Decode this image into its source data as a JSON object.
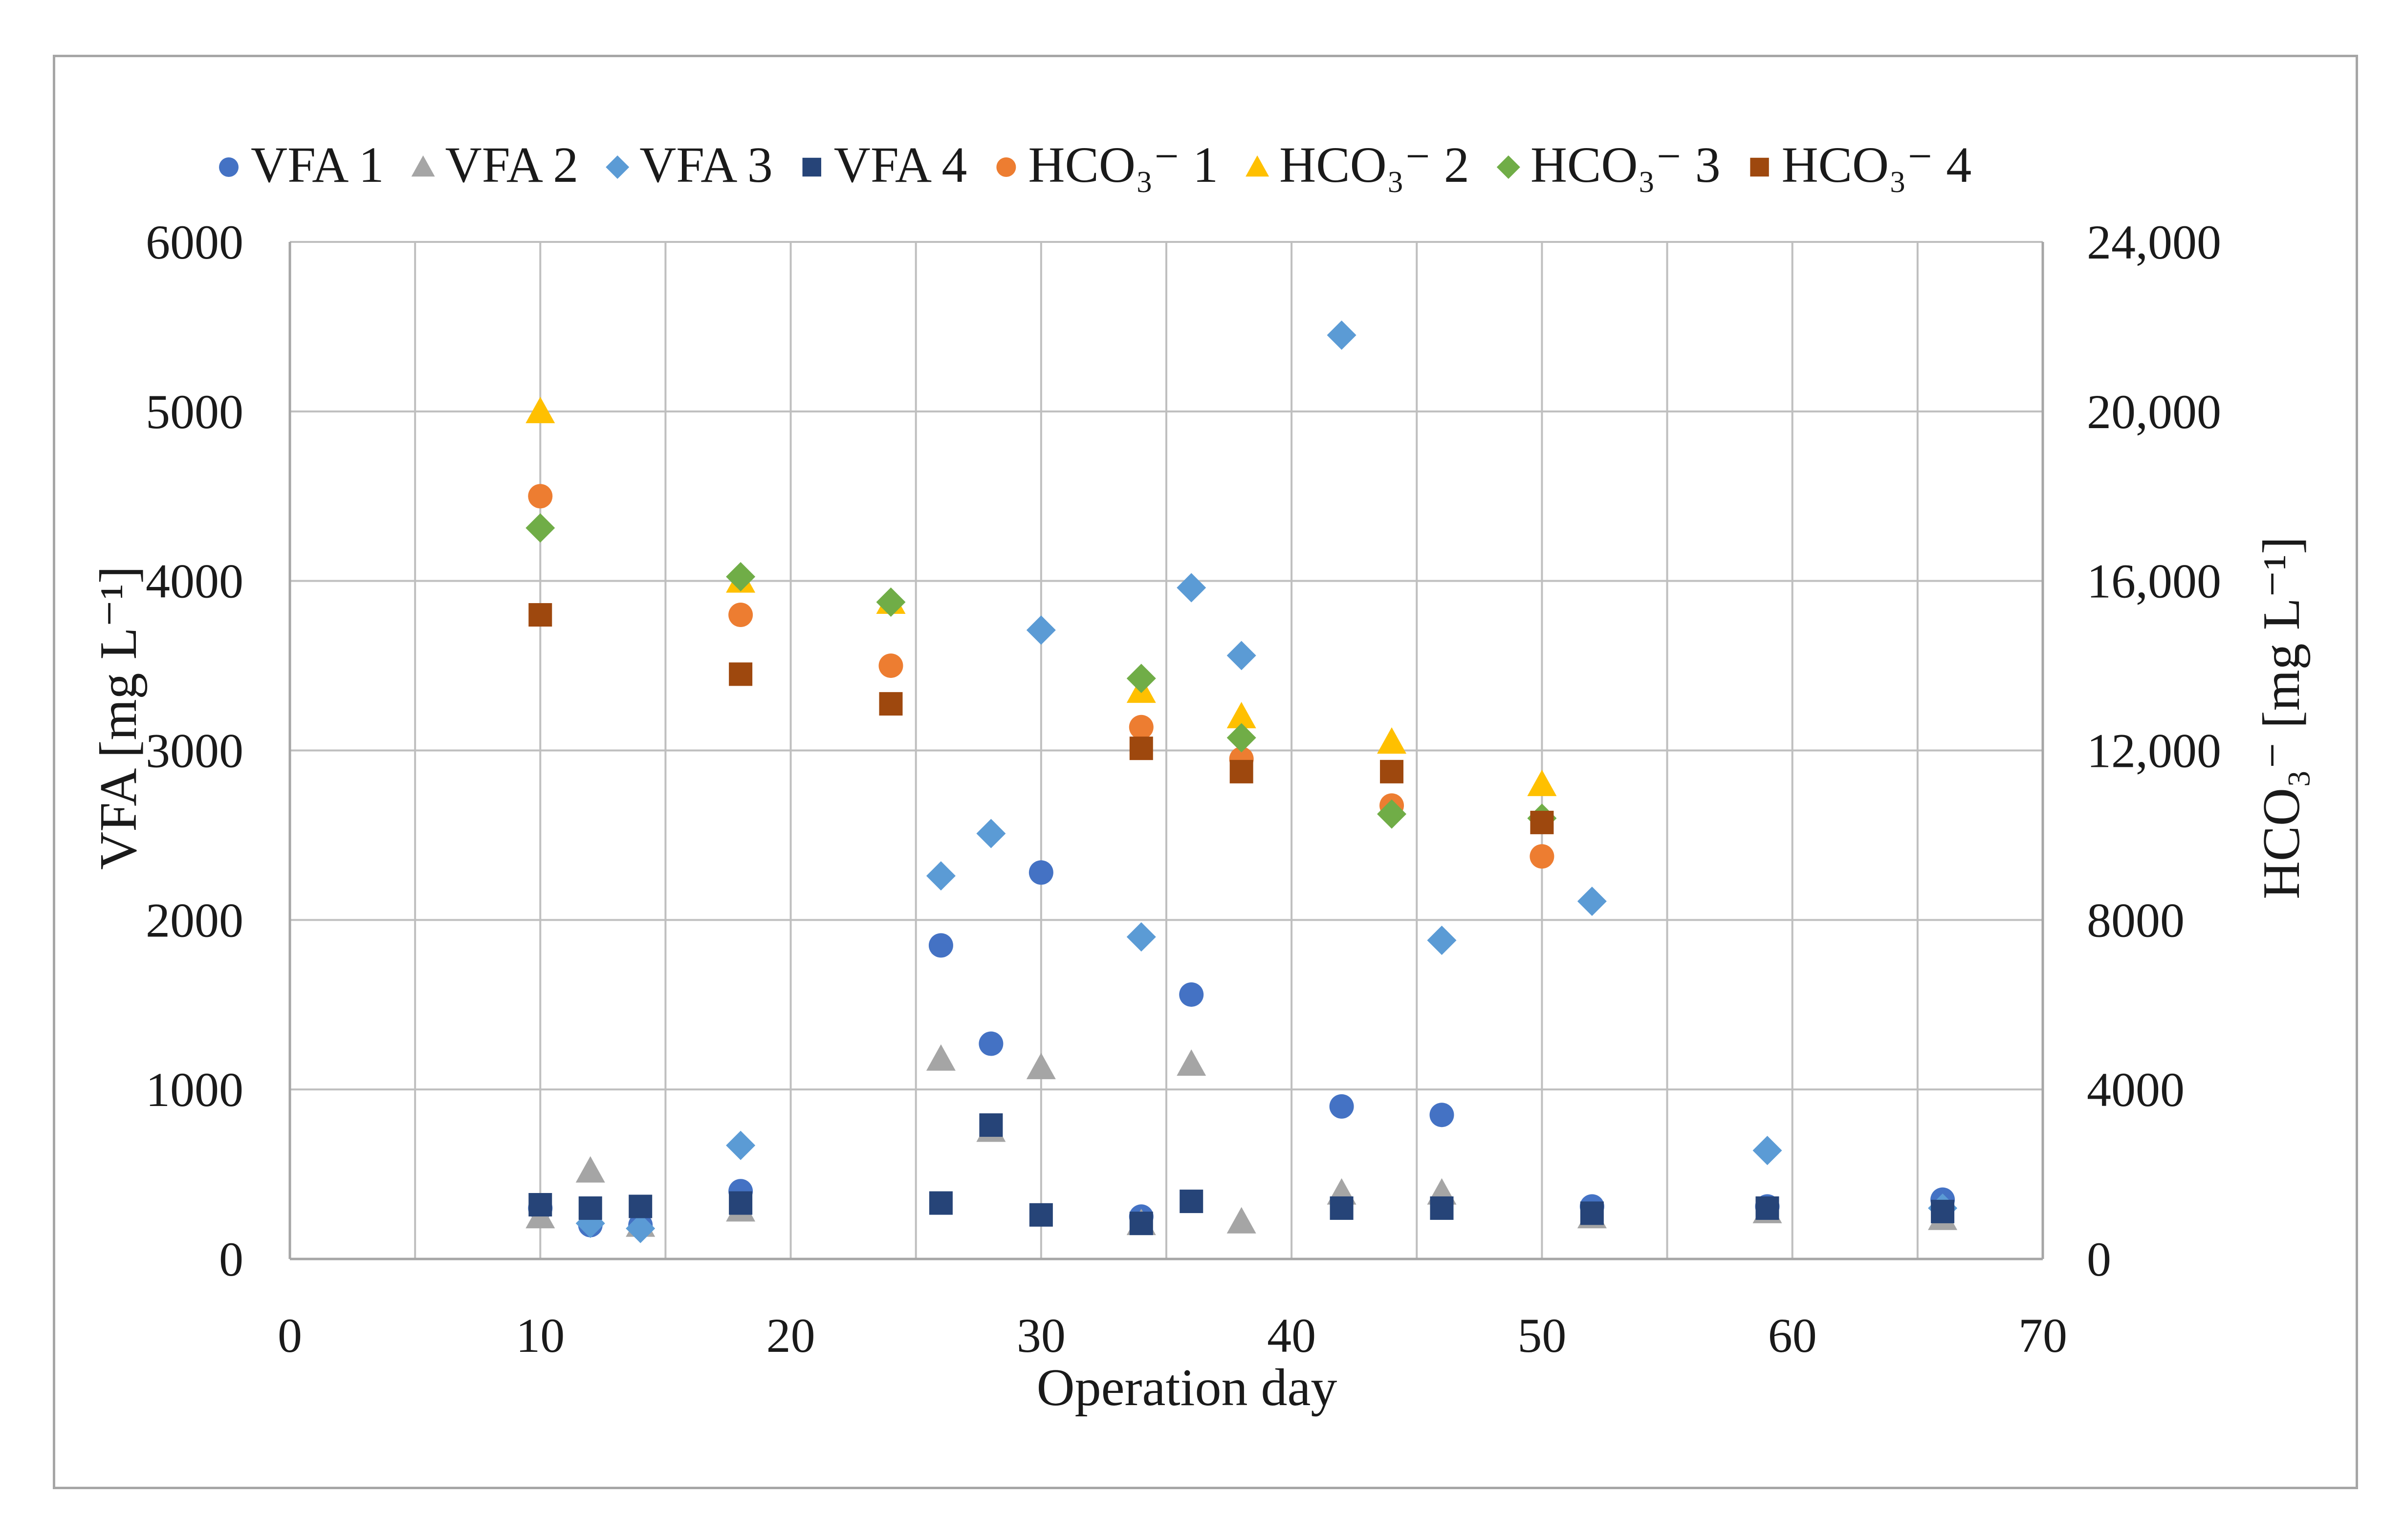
{
  "chart_data": {
    "type": "scatter",
    "xlabel": "Operation day",
    "ylabel_left": "VFA [mg L⁻¹]",
    "ylabel_right": "HCO₃⁻ [mg L⁻¹]",
    "xlim": [
      0,
      70
    ],
    "ylim_left": [
      0,
      6000
    ],
    "ylim_right": [
      0,
      24000
    ],
    "x_ticks": [
      "0",
      "10",
      "20",
      "30",
      "40",
      "50",
      "60",
      "70"
    ],
    "y_left_ticks": [
      "0",
      "1000",
      "2000",
      "3000",
      "4000",
      "5000",
      "6000"
    ],
    "y_right_ticks": [
      "0",
      "4000",
      "8000",
      "12,000",
      "16,000",
      "20,000",
      "24,000"
    ],
    "grid": true,
    "legend_position": "top",
    "series": [
      {
        "name": "VFA 1",
        "axis": "left",
        "marker": "circle",
        "color": "#4472c4",
        "points": [
          [
            10,
            300
          ],
          [
            12,
            200
          ],
          [
            14,
            200
          ],
          [
            18,
            400
          ],
          [
            26,
            1850
          ],
          [
            28,
            1270
          ],
          [
            30,
            2280
          ],
          [
            34,
            250
          ],
          [
            36,
            1560
          ],
          [
            42,
            900
          ],
          [
            46,
            850
          ],
          [
            52,
            310
          ],
          [
            59,
            310
          ],
          [
            66,
            350
          ]
        ]
      },
      {
        "name": "VFA 2",
        "axis": "left",
        "marker": "triangle",
        "color": "#a5a5a5",
        "points": [
          [
            10,
            250
          ],
          [
            12,
            520
          ],
          [
            14,
            200
          ],
          [
            18,
            290
          ],
          [
            26,
            1180
          ],
          [
            28,
            760
          ],
          [
            30,
            1130
          ],
          [
            34,
            210
          ],
          [
            36,
            1150
          ],
          [
            38,
            220
          ],
          [
            42,
            390
          ],
          [
            46,
            390
          ],
          [
            52,
            250
          ],
          [
            59,
            280
          ],
          [
            66,
            240
          ]
        ]
      },
      {
        "name": "VFA 3",
        "axis": "left",
        "marker": "diamond",
        "color": "#5b9bd5",
        "points": [
          [
            12,
            210
          ],
          [
            14,
            180
          ],
          [
            18,
            670
          ],
          [
            26,
            2260
          ],
          [
            28,
            2510
          ],
          [
            30,
            3710
          ],
          [
            34,
            1900
          ],
          [
            36,
            3960
          ],
          [
            38,
            3560
          ],
          [
            42,
            5450
          ],
          [
            46,
            1880
          ],
          [
            52,
            2110
          ],
          [
            59,
            640
          ],
          [
            66,
            300
          ]
        ]
      },
      {
        "name": "VFA 4",
        "axis": "left",
        "marker": "square",
        "color": "#264478",
        "points": [
          [
            10,
            320
          ],
          [
            12,
            300
          ],
          [
            14,
            310
          ],
          [
            18,
            330
          ],
          [
            26,
            330
          ],
          [
            28,
            790
          ],
          [
            30,
            260
          ],
          [
            34,
            210
          ],
          [
            36,
            340
          ],
          [
            42,
            300
          ],
          [
            46,
            300
          ],
          [
            52,
            270
          ],
          [
            59,
            300
          ],
          [
            66,
            280
          ]
        ]
      },
      {
        "name": "HCO₃⁻ 1",
        "axis": "right",
        "marker": "circle",
        "color": "#ed7d31",
        "points": [
          [
            10,
            18000
          ],
          [
            18,
            15200
          ],
          [
            24,
            14000
          ],
          [
            34,
            12550
          ],
          [
            38,
            11800
          ],
          [
            44,
            10700
          ],
          [
            50,
            9500
          ]
        ]
      },
      {
        "name": "HCO₃⁻ 2",
        "axis": "right",
        "marker": "triangle",
        "color": "#ffc000",
        "points": [
          [
            10,
            20000
          ],
          [
            18,
            16000
          ],
          [
            24,
            15500
          ],
          [
            34,
            13400
          ],
          [
            38,
            12800
          ],
          [
            44,
            12200
          ],
          [
            50,
            11200
          ]
        ]
      },
      {
        "name": "HCO₃⁻ 3",
        "axis": "right",
        "marker": "diamond",
        "color": "#70ad47",
        "points": [
          [
            10,
            17250
          ],
          [
            18,
            16100
          ],
          [
            24,
            15500
          ],
          [
            34,
            13700
          ],
          [
            38,
            12300
          ],
          [
            44,
            10500
          ],
          [
            50,
            10400
          ]
        ]
      },
      {
        "name": "HCO₃⁻ 4",
        "axis": "right",
        "marker": "square",
        "color": "#9e480e",
        "points": [
          [
            10,
            15200
          ],
          [
            18,
            13800
          ],
          [
            24,
            13100
          ],
          [
            34,
            12050
          ],
          [
            38,
            11500
          ],
          [
            44,
            11500
          ],
          [
            50,
            10300
          ]
        ]
      }
    ]
  }
}
